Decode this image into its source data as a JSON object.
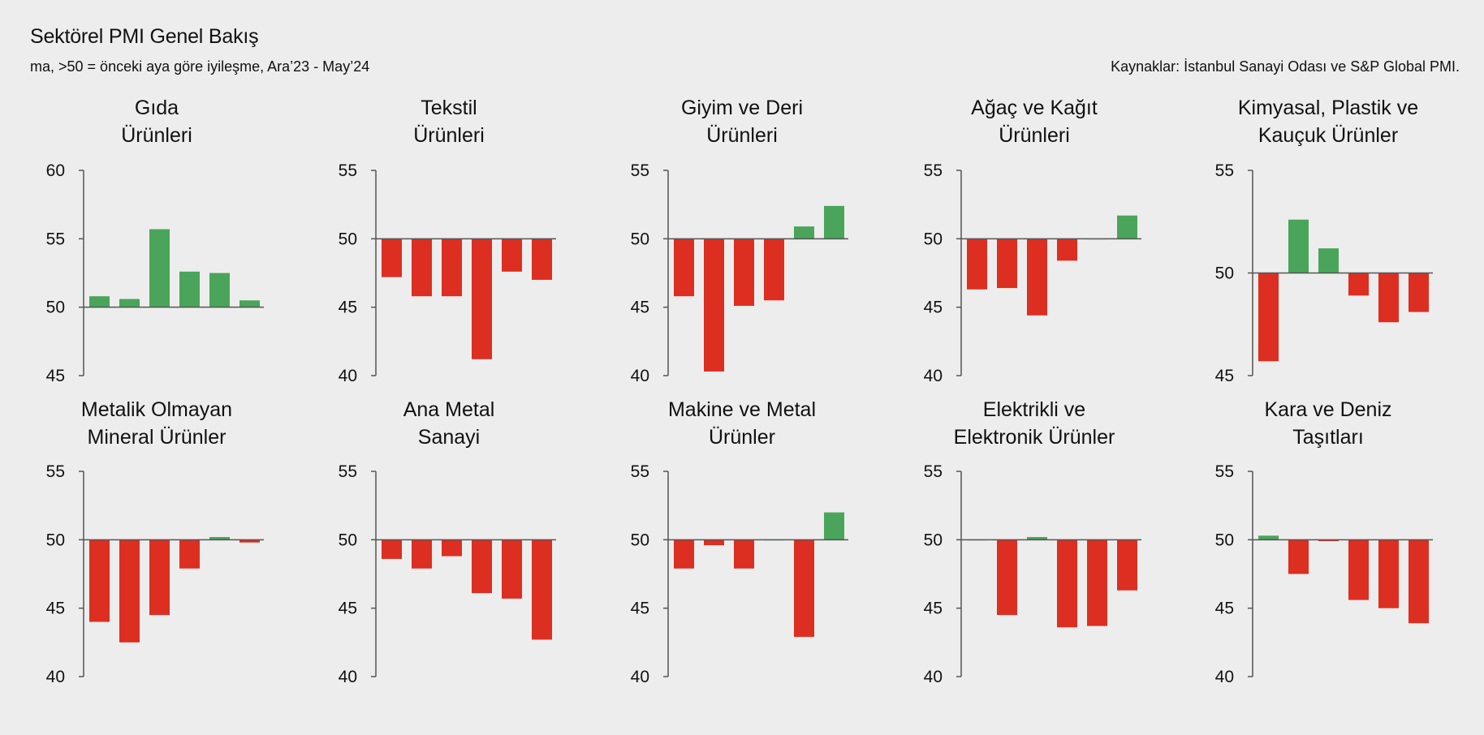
{
  "header": {
    "title": "Sektörel PMI Genel Bakış",
    "subtitle": "ma, >50 = önceki aya göre iyileşme, Ara’23 - May’24",
    "source": "Kaynaklar: İstanbul Sanayi Odası ve S&P Global PMI."
  },
  "colors": {
    "positive": "#4aa55a",
    "negative": "#dd2e22",
    "axis": "#555555",
    "background": "#ededed"
  },
  "chart_data": [
    {
      "type": "bar",
      "title_lines": [
        "Gıda",
        "Ürünleri"
      ],
      "yticks": [
        60,
        55,
        50,
        45
      ],
      "ylim": [
        45,
        60
      ],
      "baseline": 50,
      "values": [
        50.8,
        50.6,
        55.7,
        52.6,
        52.5,
        50.5
      ]
    },
    {
      "type": "bar",
      "title_lines": [
        "Tekstil",
        "Ürünleri"
      ],
      "yticks": [
        55,
        50,
        45,
        40
      ],
      "ylim": [
        40,
        55
      ],
      "baseline": 50,
      "values": [
        47.2,
        45.8,
        45.8,
        41.2,
        47.6,
        47.0
      ]
    },
    {
      "type": "bar",
      "title_lines": [
        "Giyim ve Deri",
        "Ürünleri"
      ],
      "yticks": [
        55,
        50,
        45,
        40
      ],
      "ylim": [
        40,
        55
      ],
      "baseline": 50,
      "values": [
        45.8,
        40.3,
        45.1,
        45.5,
        50.9,
        52.4
      ]
    },
    {
      "type": "bar",
      "title_lines": [
        "Ağaç ve Kağıt",
        "Ürünleri"
      ],
      "yticks": [
        55,
        50,
        45,
        40
      ],
      "ylim": [
        40,
        55
      ],
      "baseline": 50,
      "values": [
        46.3,
        46.4,
        44.4,
        48.4,
        50.0,
        51.7
      ]
    },
    {
      "type": "bar",
      "title_lines": [
        "Kimyasal, Plastik ve",
        "Kauçuk Ürünler"
      ],
      "yticks": [
        55,
        50,
        45
      ],
      "ylim": [
        45,
        55
      ],
      "baseline": 50,
      "values": [
        45.7,
        52.6,
        51.2,
        48.9,
        47.6,
        48.1
      ]
    },
    {
      "type": "bar",
      "title_lines": [
        "Metalik Olmayan",
        "Mineral Ürünler"
      ],
      "yticks": [
        55,
        50,
        45,
        40
      ],
      "ylim": [
        40,
        55
      ],
      "baseline": 50,
      "values": [
        44.0,
        42.5,
        44.5,
        47.9,
        50.2,
        49.8
      ]
    },
    {
      "type": "bar",
      "title_lines": [
        "Ana Metal",
        "Sanayi"
      ],
      "yticks": [
        55,
        50,
        45,
        40
      ],
      "ylim": [
        40,
        55
      ],
      "baseline": 50,
      "values": [
        48.6,
        47.9,
        48.8,
        46.1,
        45.7,
        42.7
      ]
    },
    {
      "type": "bar",
      "title_lines": [
        "Makine ve Metal",
        "Ürünler"
      ],
      "yticks": [
        55,
        50,
        45,
        40
      ],
      "ylim": [
        40,
        55
      ],
      "baseline": 50,
      "values": [
        47.9,
        49.6,
        47.9,
        50.0,
        42.9,
        52.0
      ]
    },
    {
      "type": "bar",
      "title_lines": [
        "Elektrikli ve",
        "Elektronik Ürünler"
      ],
      "yticks": [
        55,
        50,
        45,
        40
      ],
      "ylim": [
        40,
        55
      ],
      "baseline": 50,
      "values": [
        50.0,
        44.5,
        50.2,
        43.6,
        43.7,
        46.3
      ]
    },
    {
      "type": "bar",
      "title_lines": [
        "Kara ve Deniz",
        "Taşıtları"
      ],
      "yticks": [
        55,
        50,
        45,
        40
      ],
      "ylim": [
        40,
        55
      ],
      "baseline": 50,
      "values": [
        50.3,
        47.5,
        49.9,
        45.6,
        45.0,
        43.9
      ]
    }
  ]
}
